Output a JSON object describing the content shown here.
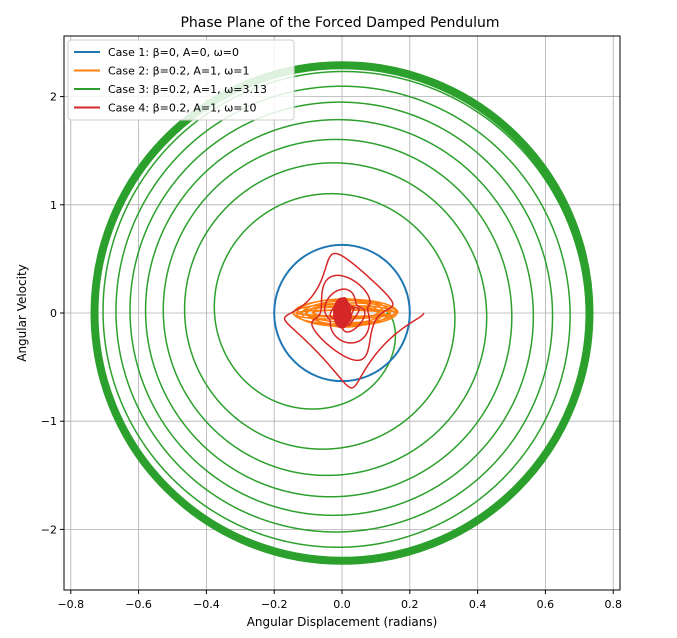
{
  "chart_data": {
    "type": "line",
    "title": "Phase Plane of the Forced Damped Pendulum",
    "xlabel": "Angular Displacement (radians)",
    "ylabel": "Angular Velocity",
    "xlim": [
      -0.82,
      0.82
    ],
    "ylim": [
      -2.56,
      2.56
    ],
    "xticks": [
      -0.8,
      -0.6,
      -0.4,
      -0.2,
      0.0,
      0.2,
      0.4,
      0.6,
      0.8
    ],
    "yticks": [
      -2,
      -1,
      0,
      1,
      2
    ],
    "xtick_labels": [
      "−0.8",
      "−0.6",
      "−0.4",
      "−0.2",
      "0.0",
      "0.2",
      "0.4",
      "0.6",
      "0.8"
    ],
    "ytick_labels": [
      "−2",
      "−1",
      "0",
      "1",
      "2"
    ],
    "grid": true,
    "legend_position": "top-left",
    "series": [
      {
        "name": "Case 1: β=0, A=0, ω=0",
        "color": "#1f77b4",
        "shape": {
          "kind": "ellipse",
          "cx": 0.0,
          "cy": 0.0,
          "rx": 0.2,
          "ry": 0.63
        }
      },
      {
        "name": "Case 2: β=0.2, A=1, ω=1",
        "color": "#ff7f0e",
        "shape": {
          "kind": "tight-loops",
          "x_range": [
            -0.17,
            0.14
          ],
          "y_range": [
            -0.15,
            0.15
          ]
        }
      },
      {
        "name": "Case 3: β=0.2, A=1, ω=3.13",
        "color": "#2ca02c",
        "shape": {
          "kind": "growing-spiral",
          "start": [
            0.2,
            0.0
          ],
          "final_radius_x": 0.73,
          "final_radius_y": 2.29
        }
      },
      {
        "name": "Case 4: β=0.2, A=1, ω=10",
        "color": "#d62728",
        "shape": {
          "kind": "decaying-loops",
          "start": [
            0.2,
            0.0
          ],
          "x_range": [
            -0.08,
            0.2
          ],
          "y_range": [
            -0.68,
            0.62
          ]
        }
      }
    ]
  }
}
